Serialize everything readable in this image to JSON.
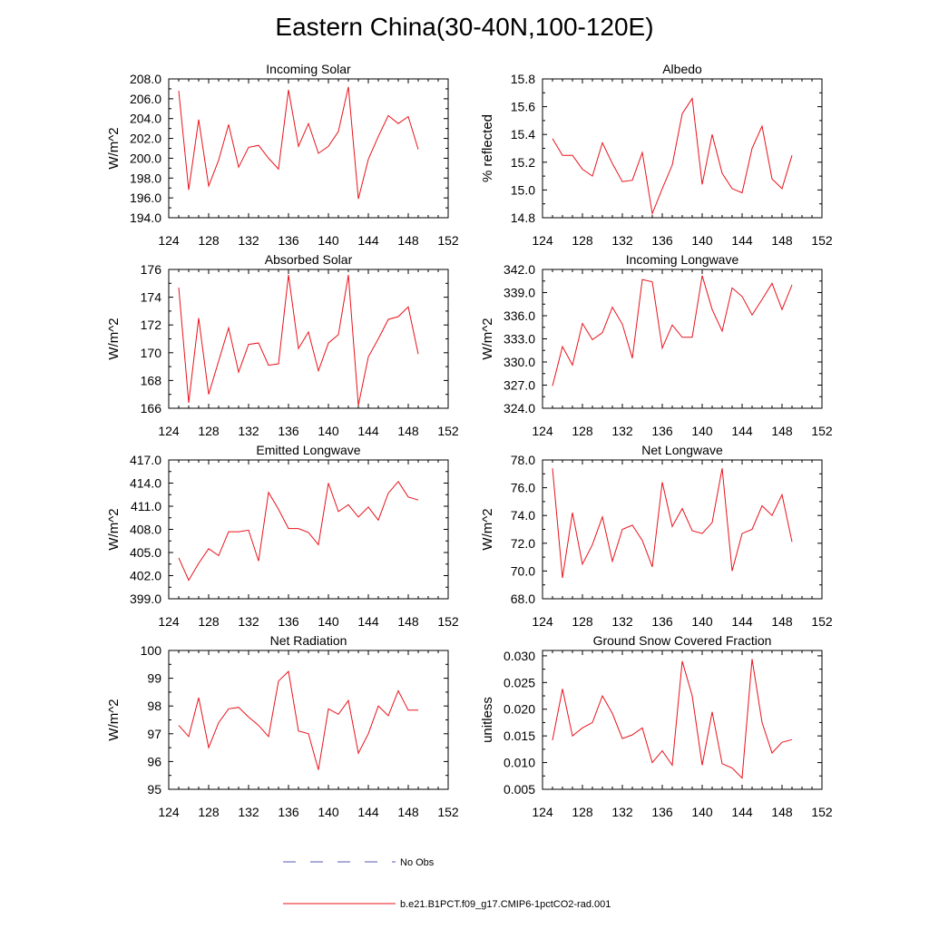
{
  "title": "Eastern China(30-40N,100-120E)",
  "colors": {
    "model_line": "#e8121b",
    "obs_line": "#5a5ab4",
    "axis": "#000000"
  },
  "legend": [
    {
      "label": "No Obs",
      "style": "dashed",
      "color": "#5a5ab4"
    },
    {
      "label": "b.e21.B1PCT.f09_g17.CMIP6-1pctCO2-rad.001",
      "style": "solid",
      "color": "#e8121b"
    }
  ],
  "chart_data": [
    {
      "type": "line",
      "title": "Incoming Solar",
      "ylabel": "W/m^2",
      "xlim": [
        124,
        152
      ],
      "xticks": [
        "124",
        "128",
        "132",
        "136",
        "140",
        "144",
        "148",
        "152"
      ],
      "ylim": [
        194,
        208
      ],
      "yticks": [
        "194.0",
        "196.0",
        "198.0",
        "200.0",
        "202.0",
        "204.0",
        "206.0",
        "208.0"
      ],
      "x": [
        125,
        126,
        127,
        128,
        129,
        130,
        131,
        132,
        133,
        134,
        135,
        136,
        137,
        138,
        139,
        140,
        141,
        142,
        143,
        144,
        145,
        146,
        147,
        148,
        149
      ],
      "series": [
        {
          "name": "b.e21.B1PCT.f09_g17.CMIP6-1pctCO2-rad.001",
          "values": [
            206.8,
            196.8,
            203.9,
            197.2,
            199.8,
            203.4,
            199.1,
            201.1,
            201.3,
            200.0,
            198.9,
            206.9,
            201.2,
            203.5,
            200.5,
            201.2,
            202.7,
            207.2,
            195.9,
            199.9,
            202.2,
            204.3,
            203.5,
            204.2,
            200.9
          ]
        }
      ]
    },
    {
      "type": "line",
      "title": "Albedo",
      "ylabel": "% reflected",
      "xlim": [
        124,
        152
      ],
      "xticks": [
        "124",
        "128",
        "132",
        "136",
        "140",
        "144",
        "148",
        "152"
      ],
      "ylim": [
        14.8,
        15.8
      ],
      "yticks": [
        "14.8",
        "15.0",
        "15.2",
        "15.4",
        "15.6",
        "15.8"
      ],
      "x": [
        125,
        126,
        127,
        128,
        129,
        130,
        131,
        132,
        133,
        134,
        135,
        136,
        137,
        138,
        139,
        140,
        141,
        142,
        143,
        144,
        145,
        146,
        147,
        148,
        149
      ],
      "series": [
        {
          "name": "b.e21.B1PCT.f09_g17.CMIP6-1pctCO2-rad.001",
          "values": [
            15.37,
            15.25,
            15.25,
            15.15,
            15.1,
            15.34,
            15.19,
            15.06,
            15.07,
            15.27,
            14.83,
            15.01,
            15.18,
            15.55,
            15.66,
            15.04,
            15.4,
            15.12,
            15.01,
            14.98,
            15.3,
            15.46,
            15.08,
            15.01,
            15.25
          ]
        }
      ]
    },
    {
      "type": "line",
      "title": "Absorbed Solar",
      "ylabel": "W/m^2",
      "xlim": [
        124,
        152
      ],
      "xticks": [
        "124",
        "128",
        "132",
        "136",
        "140",
        "144",
        "148",
        "152"
      ],
      "ylim": [
        166,
        176
      ],
      "yticks": [
        "166",
        "168",
        "170",
        "172",
        "174",
        "176"
      ],
      "x": [
        125,
        126,
        127,
        128,
        129,
        130,
        131,
        132,
        133,
        134,
        135,
        136,
        137,
        138,
        139,
        140,
        141,
        142,
        143,
        144,
        145,
        146,
        147,
        148,
        149
      ],
      "series": [
        {
          "name": "b.e21.B1PCT.f09_g17.CMIP6-1pctCO2-rad.001",
          "values": [
            174.7,
            166.4,
            172.5,
            167.0,
            169.4,
            171.8,
            168.6,
            170.6,
            170.7,
            169.1,
            169.2,
            175.6,
            170.3,
            171.5,
            168.7,
            170.7,
            171.3,
            175.6,
            166.2,
            169.7,
            171.0,
            172.4,
            172.6,
            173.3,
            169.9
          ]
        }
      ]
    },
    {
      "type": "line",
      "title": "Incoming Longwave",
      "ylabel": "W/m^2",
      "xlim": [
        124,
        152
      ],
      "xticks": [
        "124",
        "128",
        "132",
        "136",
        "140",
        "144",
        "148",
        "152"
      ],
      "ylim": [
        324,
        342
      ],
      "yticks": [
        "324.0",
        "327.0",
        "330.0",
        "333.0",
        "336.0",
        "339.0",
        "342.0"
      ],
      "x": [
        125,
        126,
        127,
        128,
        129,
        130,
        131,
        132,
        133,
        134,
        135,
        136,
        137,
        138,
        139,
        140,
        141,
        142,
        143,
        144,
        145,
        146,
        147,
        148,
        149
      ],
      "series": [
        {
          "name": "b.e21.B1PCT.f09_g17.CMIP6-1pctCO2-rad.001",
          "values": [
            326.9,
            332.0,
            329.6,
            335.0,
            332.9,
            333.8,
            337.1,
            334.9,
            330.5,
            340.7,
            340.4,
            331.8,
            334.8,
            333.2,
            333.2,
            341.2,
            336.8,
            334.0,
            339.6,
            338.5,
            336.1,
            338.1,
            340.2,
            336.8,
            340.0
          ]
        }
      ]
    },
    {
      "type": "line",
      "title": "Emitted Longwave",
      "ylabel": "W/m^2",
      "xlim": [
        124,
        152
      ],
      "xticks": [
        "124",
        "128",
        "132",
        "136",
        "140",
        "144",
        "148",
        "152"
      ],
      "ylim": [
        399,
        417
      ],
      "yticks": [
        "399.0",
        "402.0",
        "405.0",
        "408.0",
        "411.0",
        "414.0",
        "417.0"
      ],
      "x": [
        125,
        126,
        127,
        128,
        129,
        130,
        131,
        132,
        133,
        134,
        135,
        136,
        137,
        138,
        139,
        140,
        141,
        142,
        143,
        144,
        145,
        146,
        147,
        148,
        149
      ],
      "series": [
        {
          "name": "b.e21.B1PCT.f09_g17.CMIP6-1pctCO2-rad.001",
          "values": [
            404.3,
            401.4,
            403.6,
            405.5,
            404.6,
            407.7,
            407.7,
            407.9,
            403.9,
            412.8,
            410.6,
            408.1,
            408.1,
            407.6,
            406.0,
            414.0,
            410.3,
            411.2,
            409.6,
            410.9,
            409.2,
            412.7,
            414.2,
            412.2,
            411.8
          ]
        }
      ]
    },
    {
      "type": "line",
      "title": "Net Longwave",
      "ylabel": "W/m^2",
      "xlim": [
        124,
        152
      ],
      "xticks": [
        "124",
        "128",
        "132",
        "136",
        "140",
        "144",
        "148",
        "152"
      ],
      "ylim": [
        68,
        78
      ],
      "yticks": [
        "68.0",
        "70.0",
        "72.0",
        "74.0",
        "76.0",
        "78.0"
      ],
      "x": [
        125,
        126,
        127,
        128,
        129,
        130,
        131,
        132,
        133,
        134,
        135,
        136,
        137,
        138,
        139,
        140,
        141,
        142,
        143,
        144,
        145,
        146,
        147,
        148,
        149
      ],
      "series": [
        {
          "name": "b.e21.B1PCT.f09_g17.CMIP6-1pctCO2-rad.001",
          "values": [
            77.4,
            69.5,
            74.2,
            70.5,
            71.9,
            73.9,
            70.7,
            73.0,
            73.3,
            72.2,
            70.3,
            76.4,
            73.2,
            74.5,
            72.9,
            72.7,
            73.5,
            77.4,
            70.0,
            72.7,
            73.0,
            74.7,
            74.0,
            75.5,
            72.1
          ]
        }
      ]
    },
    {
      "type": "line",
      "title": "Net Radiation",
      "ylabel": "W/m^2",
      "xlim": [
        124,
        152
      ],
      "xticks": [
        "124",
        "128",
        "132",
        "136",
        "140",
        "144",
        "148",
        "152"
      ],
      "ylim": [
        95,
        100
      ],
      "yticks": [
        "95",
        "96",
        "97",
        "98",
        "99",
        "100"
      ],
      "x": [
        125,
        126,
        127,
        128,
        129,
        130,
        131,
        132,
        133,
        134,
        135,
        136,
        137,
        138,
        139,
        140,
        141,
        142,
        143,
        144,
        145,
        146,
        147,
        148,
        149
      ],
      "series": [
        {
          "name": "b.e21.B1PCT.f09_g17.CMIP6-1pctCO2-rad.001",
          "values": [
            97.3,
            96.9,
            98.3,
            96.5,
            97.4,
            97.9,
            97.95,
            97.6,
            97.3,
            96.9,
            98.9,
            99.25,
            97.1,
            97.0,
            95.7,
            97.9,
            97.7,
            98.2,
            96.3,
            97.0,
            98.0,
            97.65,
            98.55,
            97.85,
            97.85
          ]
        }
      ]
    },
    {
      "type": "line",
      "title": "Ground Snow Covered Fraction",
      "ylabel": "unitless",
      "xlim": [
        124,
        152
      ],
      "xticks": [
        "124",
        "128",
        "132",
        "136",
        "140",
        "144",
        "148",
        "152"
      ],
      "ylim": [
        0.005,
        0.031
      ],
      "yticks": [
        "0.005",
        "0.010",
        "0.015",
        "0.020",
        "0.025",
        "0.030"
      ],
      "x": [
        125,
        126,
        127,
        128,
        129,
        130,
        131,
        132,
        133,
        134,
        135,
        136,
        137,
        138,
        139,
        140,
        141,
        142,
        143,
        144,
        145,
        146,
        147,
        148,
        149
      ],
      "series": [
        {
          "name": "b.e21.B1PCT.f09_g17.CMIP6-1pctCO2-rad.001",
          "values": [
            0.0142,
            0.0238,
            0.015,
            0.0165,
            0.0175,
            0.0225,
            0.0192,
            0.0145,
            0.0152,
            0.0165,
            0.01,
            0.0122,
            0.0095,
            0.029,
            0.0225,
            0.0095,
            0.0195,
            0.0098,
            0.009,
            0.0071,
            0.0294,
            0.0175,
            0.0118,
            0.0138,
            0.0143
          ]
        }
      ]
    }
  ]
}
